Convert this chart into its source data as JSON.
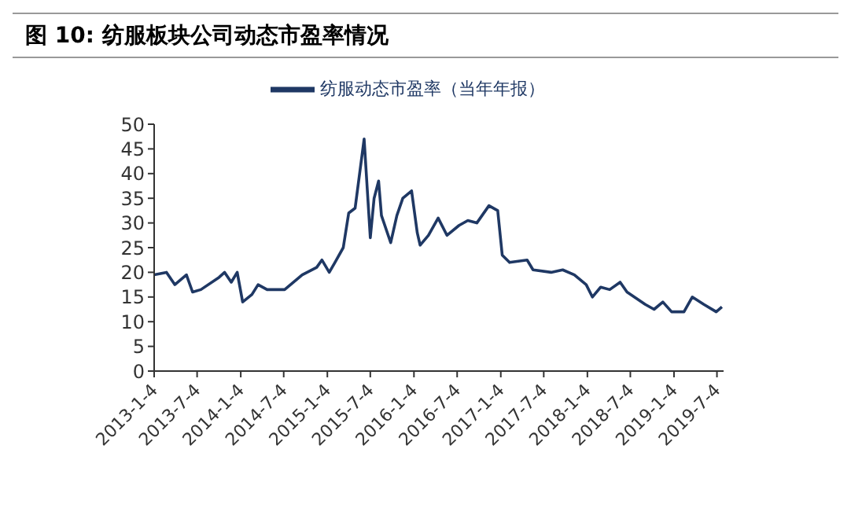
{
  "chart_data": {
    "type": "line",
    "title": "图 10:  纺服板块公司动态市盈率情况",
    "x": [
      "2013-01-04",
      "2013-02-25",
      "2013-04-01",
      "2013-05-20",
      "2013-06-15",
      "2013-07-20",
      "2013-10-05",
      "2013-10-28",
      "2013-11-25",
      "2013-12-20",
      "2014-01-12",
      "2014-02-20",
      "2014-03-18",
      "2014-04-25",
      "2014-07-08",
      "2014-09-20",
      "2014-11-20",
      "2014-12-12",
      "2015-01-12",
      "2015-02-05",
      "2015-03-12",
      "2015-04-04",
      "2015-05-01",
      "2015-06-08",
      "2015-07-04",
      "2015-07-20",
      "2015-08-08",
      "2015-08-20",
      "2015-09-28",
      "2015-10-24",
      "2015-11-18",
      "2015-12-25",
      "2016-01-18",
      "2016-01-30",
      "2016-03-05",
      "2016-04-15",
      "2016-05-22",
      "2016-07-12",
      "2016-08-18",
      "2016-09-25",
      "2016-11-15",
      "2016-12-22",
      "2017-01-10",
      "2017-02-10",
      "2017-04-25",
      "2017-05-20",
      "2017-08-04",
      "2017-09-22",
      "2017-11-10",
      "2017-12-30",
      "2018-01-25",
      "2018-03-01",
      "2018-04-08",
      "2018-05-22",
      "2018-06-20",
      "2018-09-05",
      "2018-10-12",
      "2018-11-18",
      "2018-12-25",
      "2019-02-15",
      "2019-03-22",
      "2019-05-10",
      "2019-07-01",
      "2019-07-25"
    ],
    "series": [
      {
        "name": "纺服动态市盈率（当年年报）",
        "color": "#1f3864",
        "values": [
          19.5,
          20,
          17.5,
          19.5,
          16,
          16.5,
          19,
          20,
          18,
          20,
          14,
          15.5,
          17.5,
          16.5,
          16.5,
          19.5,
          21,
          22.5,
          20,
          22,
          25,
          32,
          33,
          47,
          27,
          35,
          38.5,
          31.5,
          26,
          31.5,
          35,
          36.5,
          28,
          25.5,
          27.5,
          31,
          27.5,
          29.5,
          30.5,
          30,
          33.5,
          32.5,
          23.5,
          22,
          22.5,
          20.5,
          20,
          20.5,
          19.5,
          17.5,
          15,
          17,
          16.5,
          18,
          16,
          13.5,
          12.5,
          14,
          12,
          12,
          15,
          13.5,
          12,
          13
        ]
      }
    ],
    "xlim": [
      "2013-01-04",
      "2019-08-01"
    ],
    "xticks": [
      {
        "value": "2013-01-04",
        "label": "2013-1-4"
      },
      {
        "value": "2013-07-04",
        "label": "2013-7-4"
      },
      {
        "value": "2014-01-04",
        "label": "2014-1-4"
      },
      {
        "value": "2014-07-04",
        "label": "2014-7-4"
      },
      {
        "value": "2015-01-04",
        "label": "2015-1-4"
      },
      {
        "value": "2015-07-04",
        "label": "2015-7-4"
      },
      {
        "value": "2016-01-04",
        "label": "2016-1-4"
      },
      {
        "value": "2016-07-04",
        "label": "2016-7-4"
      },
      {
        "value": "2017-01-04",
        "label": "2017-1-4"
      },
      {
        "value": "2017-07-04",
        "label": "2017-7-4"
      },
      {
        "value": "2018-01-04",
        "label": "2018-1-4"
      },
      {
        "value": "2018-07-04",
        "label": "2018-7-4"
      },
      {
        "value": "2019-01-04",
        "label": "2019-1-4"
      },
      {
        "value": "2019-07-04",
        "label": "2019-7-4"
      }
    ],
    "ylim": [
      0,
      50
    ],
    "yticks": [
      0,
      5,
      10,
      15,
      20,
      25,
      30,
      35,
      40,
      45,
      50
    ],
    "grid": false,
    "legend": "top",
    "marker": "none",
    "line_style": "solid"
  }
}
